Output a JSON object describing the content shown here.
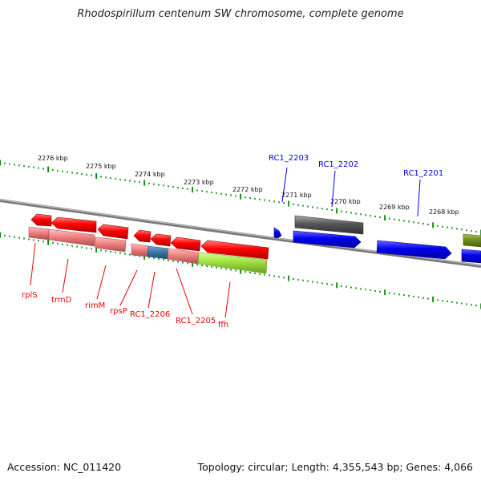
{
  "title": "Rhodospirillum centenum SW chromosome, complete genome",
  "footer": {
    "accession": "Accession: NC_011420",
    "summary": "Topology: circular; Length: 4,355,543 bp; Genes: 4,066"
  },
  "colors": {
    "forward_gene": "#0000ee",
    "reverse_gene": "#ff0000",
    "reverse_cds": "#f08080",
    "selected_feature": "#a0e040",
    "rna_feature": "#555555",
    "tick": "#008800",
    "backbone": "#888888"
  },
  "scale_labels": [
    "2276 kbp",
    "2275 kbp",
    "2274 kbp",
    "2273 kbp",
    "2272 kbp",
    "2271 kbp",
    "2270 kbp",
    "2269 kbp",
    "2268 kbp"
  ],
  "gene_labels": {
    "forward": [
      "RC1_2203",
      "RC1_2202",
      "RC1_2201"
    ],
    "reverse": [
      "rplS",
      "trmD",
      "rimM",
      "rpsP",
      "RC1_2206",
      "RC1_2205",
      "ffh"
    ]
  }
}
